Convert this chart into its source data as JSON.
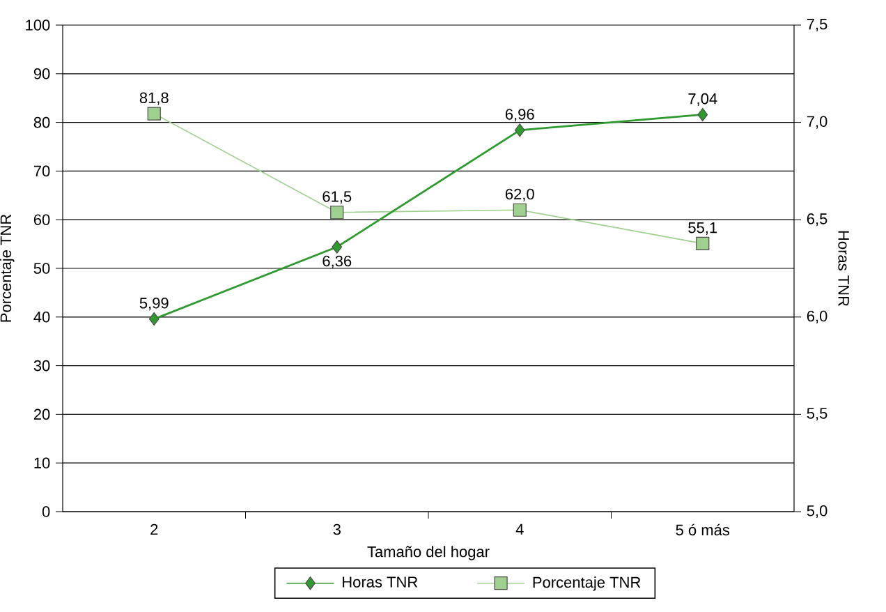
{
  "chart_data": {
    "type": "line",
    "xlabel": "Tamaño del hogar",
    "ylabel": "Porcentaje TNR",
    "y2label": "Horas TNR",
    "categories": [
      "2",
      "3",
      "4",
      "5 ó más"
    ],
    "ylim": [
      0,
      100
    ],
    "yticks": [
      0,
      10,
      20,
      30,
      40,
      50,
      60,
      70,
      80,
      90,
      100
    ],
    "y2lim": [
      5,
      7.5
    ],
    "y2ticks": [
      {
        "value": 5,
        "label": "5,0"
      },
      {
        "value": 5.5,
        "label": "5,5"
      },
      {
        "value": 6,
        "label": "6,0"
      },
      {
        "value": 6.5,
        "label": "6,5"
      },
      {
        "value": 7,
        "label": "7,0"
      },
      {
        "value": 7.5,
        "label": "7,5"
      }
    ],
    "grid": "y",
    "legend": "bottom",
    "series": [
      {
        "name": "Horas TNR",
        "axis": "y2",
        "color": "#2f9a2f",
        "marker": "diamond",
        "values": [
          5.99,
          6.36,
          6.96,
          7.04
        ],
        "value_labels": [
          "5,99",
          "6,36",
          "6,96",
          "7,04"
        ]
      },
      {
        "name": "Porcentaje TNR",
        "color": "#9fd08f",
        "marker": "square",
        "values": [
          81.8,
          61.5,
          62.0,
          55.1
        ],
        "value_labels": [
          "81,8",
          "61,5",
          "62,0",
          "55,1"
        ]
      }
    ]
  }
}
